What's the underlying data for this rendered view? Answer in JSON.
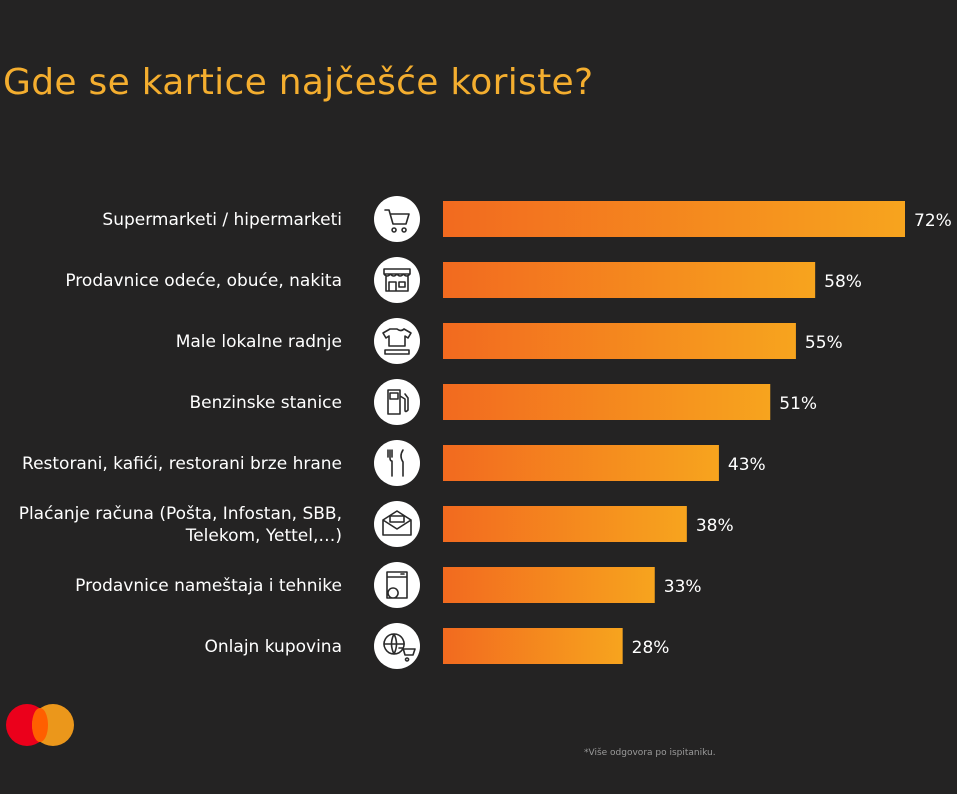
{
  "title": "Gde se kartice najčešće koriste?",
  "footnote": "*Više odgovora po ispitaniku.",
  "colors": {
    "title": "#f4ae2f",
    "bar_start": "#f26a1f",
    "bar_end": "#f7a41e",
    "background": "#242323"
  },
  "chart_data": {
    "type": "bar",
    "orientation": "horizontal",
    "categories": [
      [
        "Supermarketi / hipermarketi"
      ],
      [
        "Prodavnice odeće, obuće, nakita"
      ],
      [
        "Male lokalne radnje"
      ],
      [
        "Benzinske stanice"
      ],
      [
        "Restorani, kafići, restorani brze hrane"
      ],
      [
        "Plaćanje računa (Pošta, Infostan, SBB,",
        "Telekom, Yettel,…)"
      ],
      [
        "Prodavnice nameštaja i tehnike"
      ],
      [
        "Onlajn kupovina"
      ]
    ],
    "values": [
      72,
      58,
      55,
      51,
      43,
      38,
      33,
      28
    ],
    "value_labels": [
      "72%",
      "58%",
      "55%",
      "51%",
      "43%",
      "38%",
      "33%",
      "28%"
    ],
    "icons": [
      "cart-icon",
      "storefront-icon",
      "shirt-icon",
      "fuel-pump-icon",
      "fork-knife-icon",
      "envelope-icon",
      "washing-machine-icon",
      "globe-cart-icon"
    ],
    "xlim": [
      0,
      72
    ],
    "grid": false,
    "legend": false
  }
}
